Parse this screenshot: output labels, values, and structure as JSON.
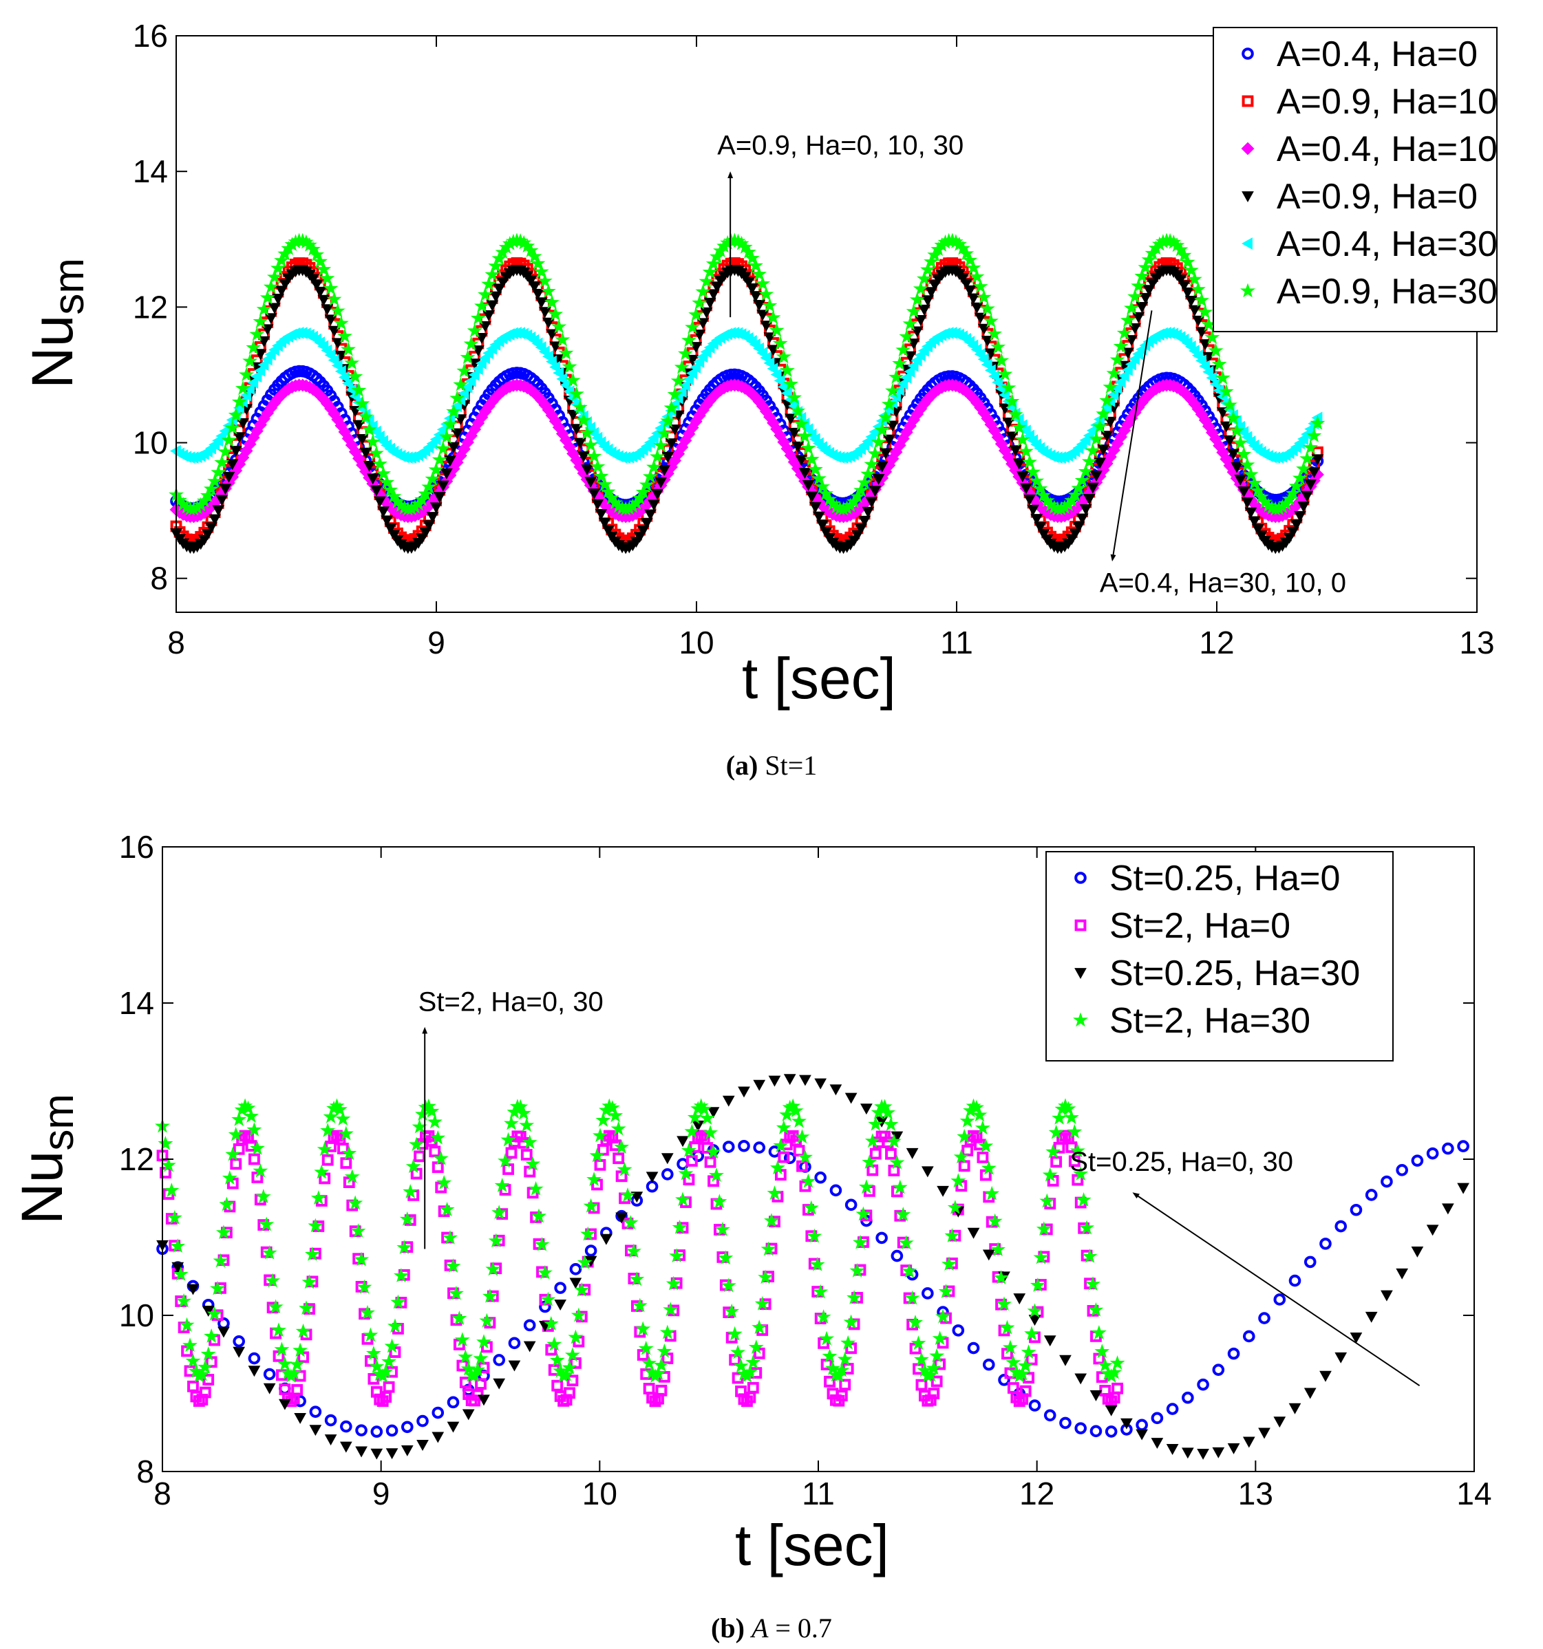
{
  "figure": {
    "caption_a_bold": "(a)",
    "caption_a_text": "St=1",
    "caption_b_bold": "(b)",
    "caption_b_text_italic": "A",
    "caption_b_text_rest": " = 0.7"
  },
  "chart_data": [
    {
      "type": "scatter",
      "id": "a",
      "xlabel": "t [sec]",
      "ylabel_main": "Nu",
      "ylabel_sub": "sm",
      "xlim": [
        8,
        13
      ],
      "ylim": [
        7.5,
        16
      ],
      "xticks": [
        8,
        9,
        10,
        11,
        12,
        13
      ],
      "yticks": [
        8,
        10,
        12,
        14,
        16
      ],
      "x_range": [
        8,
        12.4
      ],
      "period": 0.8333,
      "legend_position": "top-right",
      "series": [
        {
          "name": "A=0.4, Ha=0",
          "marker": "circle",
          "color": "#0000ff",
          "mean": 10.05,
          "amp": 1.02,
          "amp_decay": 0.03
        },
        {
          "name": "A=0.9, Ha=10",
          "marker": "square",
          "color": "#ff0000",
          "mean": 10.6,
          "amp": 2.05,
          "amp_decay": 0.0
        },
        {
          "name": "A=0.4, Ha=10",
          "marker": "diamond",
          "color": "#ff00ff",
          "mean": 9.88,
          "amp": 0.97,
          "amp_decay": 0.0
        },
        {
          "name": "A=0.9, Ha=0",
          "marker": "triangle-down",
          "color": "#000000",
          "mean": 10.5,
          "amp": 2.05,
          "amp_decay": 0.0
        },
        {
          "name": "A=0.4, Ha=30",
          "marker": "triangle-left",
          "color": "#00ffff",
          "mean": 10.7,
          "amp": 0.92,
          "amp_decay": 0.0
        },
        {
          "name": "A=0.9, Ha=30",
          "marker": "star",
          "color": "#00ff00",
          "mean": 11.0,
          "amp": 1.98,
          "amp_decay": 0.0
        }
      ],
      "annotations": [
        {
          "text": "A=0.9, Ha=0, 10, 30",
          "x_from": 10.13,
          "y_from": 11.85,
          "x_to": 10.13,
          "y_to": 13.95,
          "text_x": 10.08,
          "text_y": 14.25
        },
        {
          "text": "A=0.4, Ha=30, 10, 0",
          "x_from": 11.75,
          "y_from": 11.95,
          "x_to": 11.6,
          "y_to": 8.3,
          "text_x": 11.55,
          "text_y": 7.8
        }
      ]
    },
    {
      "type": "scatter",
      "id": "b",
      "xlabel": "t [sec]",
      "ylabel_main": "Nu",
      "ylabel_sub": "sm",
      "xlim": [
        8,
        14
      ],
      "ylim": [
        8,
        16
      ],
      "xticks": [
        8,
        9,
        10,
        11,
        12,
        13,
        14
      ],
      "yticks": [
        8,
        10,
        12,
        14,
        16
      ],
      "legend_position": "top-right",
      "series": [
        {
          "name": "St=0.25, Ha=0",
          "marker": "circle",
          "color": "#0000ff",
          "mean": 10.34,
          "amp": 1.83,
          "period": 3.333,
          "phase_peak": 10.65,
          "x_range": [
            8,
            13.95
          ],
          "step": 0.07
        },
        {
          "name": "St=2, Ha=0",
          "marker": "square",
          "color": "#ff00ff",
          "mean": 10.6,
          "amp": 1.7,
          "period": 0.4167,
          "phase_peak": 8.38,
          "x_range": [
            8,
            12.38
          ],
          "step": 0.014
        },
        {
          "name": "St=0.25, Ha=30",
          "marker": "triangle-down",
          "color": "#000000",
          "mean": 10.63,
          "amp": 2.4,
          "period": 3.75,
          "phase_peak": 10.88,
          "x_range": [
            8,
            13.95
          ],
          "step": 0.07
        },
        {
          "name": "St=2, Ha=30",
          "marker": "star",
          "color": "#00ff00",
          "mean": 10.95,
          "amp": 1.73,
          "period": 0.4167,
          "phase_peak": 8.38,
          "x_range": [
            8,
            12.38
          ],
          "step": 0.014
        }
      ],
      "annotations": [
        {
          "text": "St=2, Ha=0, 30",
          "x_from": 9.2,
          "y_from": 10.85,
          "x_to": 9.2,
          "y_to": 13.65,
          "text_x": 9.17,
          "text_y": 13.9
        },
        {
          "text": "St=0.25, Ha=0, 30",
          "x_from": 13.75,
          "y_from": 9.1,
          "x_to": 12.45,
          "y_to": 11.55,
          "text_x": 12.15,
          "text_y": 11.85
        }
      ]
    }
  ]
}
